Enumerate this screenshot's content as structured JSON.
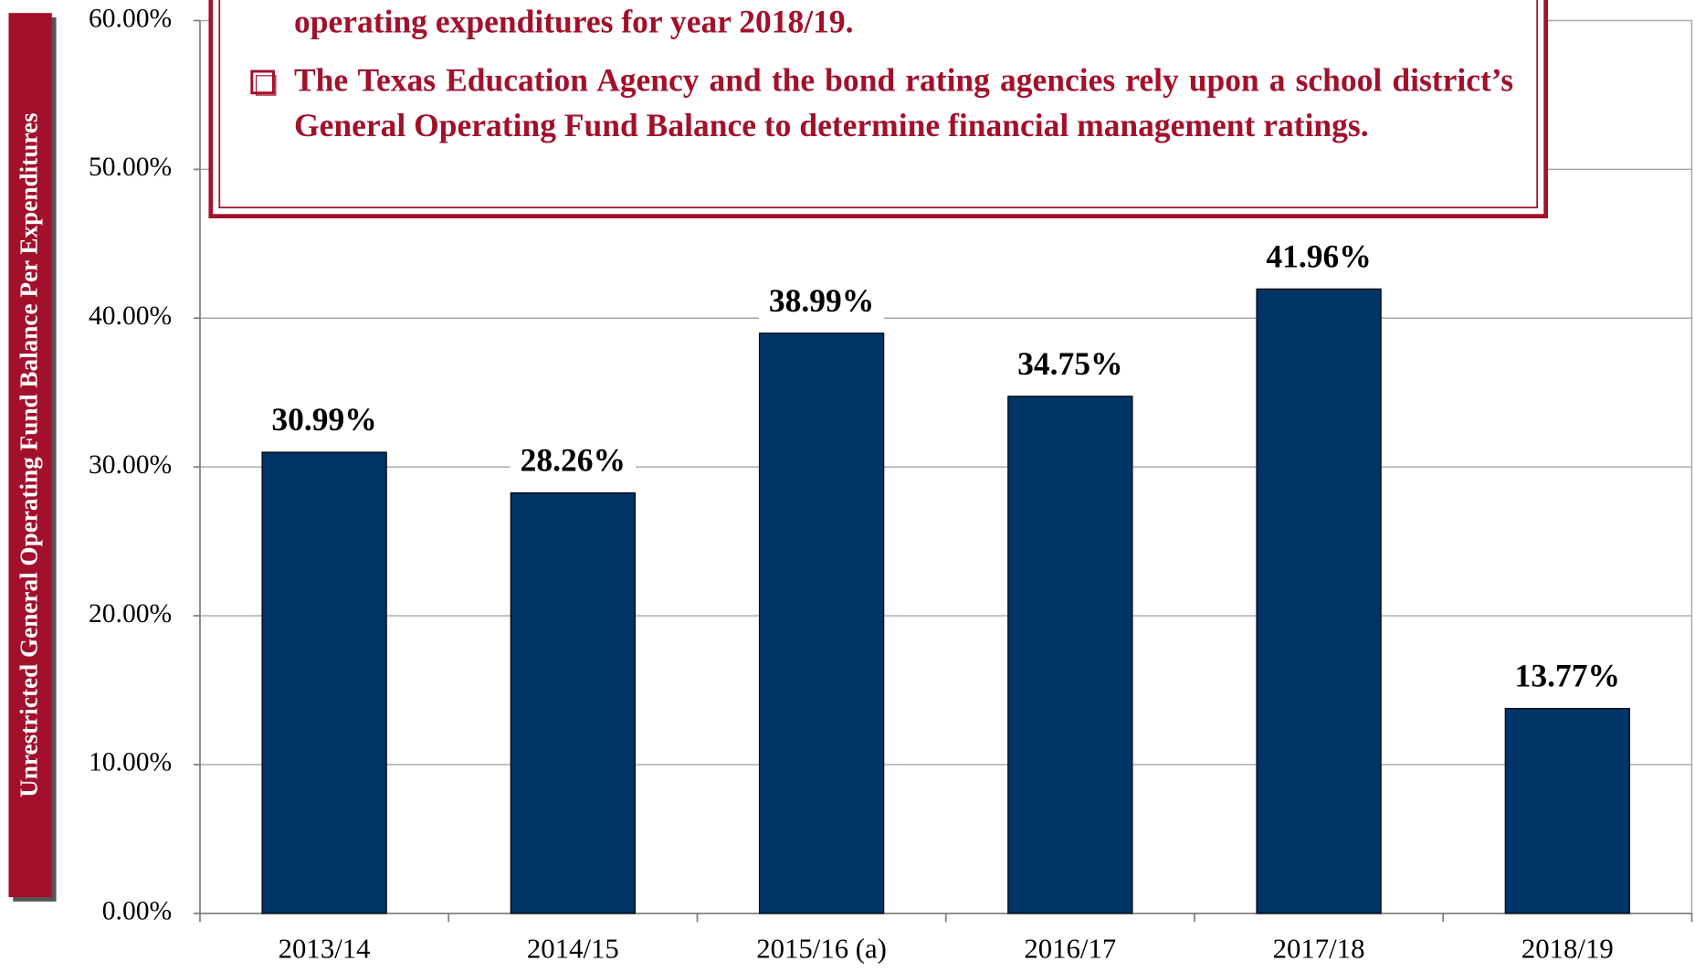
{
  "chart_data": {
    "type": "bar",
    "y_label": "Unrestricted General Operating Fund Balance Per Expenditures",
    "annotations": [
      "operating expenditures for year 2018/19.",
      "The Texas Education Agency and the bond rating agencies rely upon a school district’s General Operating Fund Balance to determine financial management ratings."
    ],
    "categories": [
      "2013/14",
      "2014/15",
      "2015/16 (a)",
      "2016/17",
      "2017/18",
      "2018/19"
    ],
    "values": [
      30.99,
      28.26,
      38.99,
      34.75,
      41.96,
      13.77
    ],
    "value_labels": [
      "30.99%",
      "28.26%",
      "38.99%",
      "34.75%",
      "41.96%",
      "13.77%"
    ],
    "color": "#003366",
    "ylim": [
      0,
      60
    ],
    "yticks": [
      {
        "value": 0,
        "label": "0.00%"
      },
      {
        "value": 10,
        "label": "10.00%"
      },
      {
        "value": 20,
        "label": "20.00%"
      },
      {
        "value": 30,
        "label": "30.00%"
      },
      {
        "value": 40,
        "label": "40.00%"
      },
      {
        "value": 50,
        "label": "50.00%"
      },
      {
        "value": 60,
        "label": "60.00%"
      }
    ],
    "grid": true
  }
}
